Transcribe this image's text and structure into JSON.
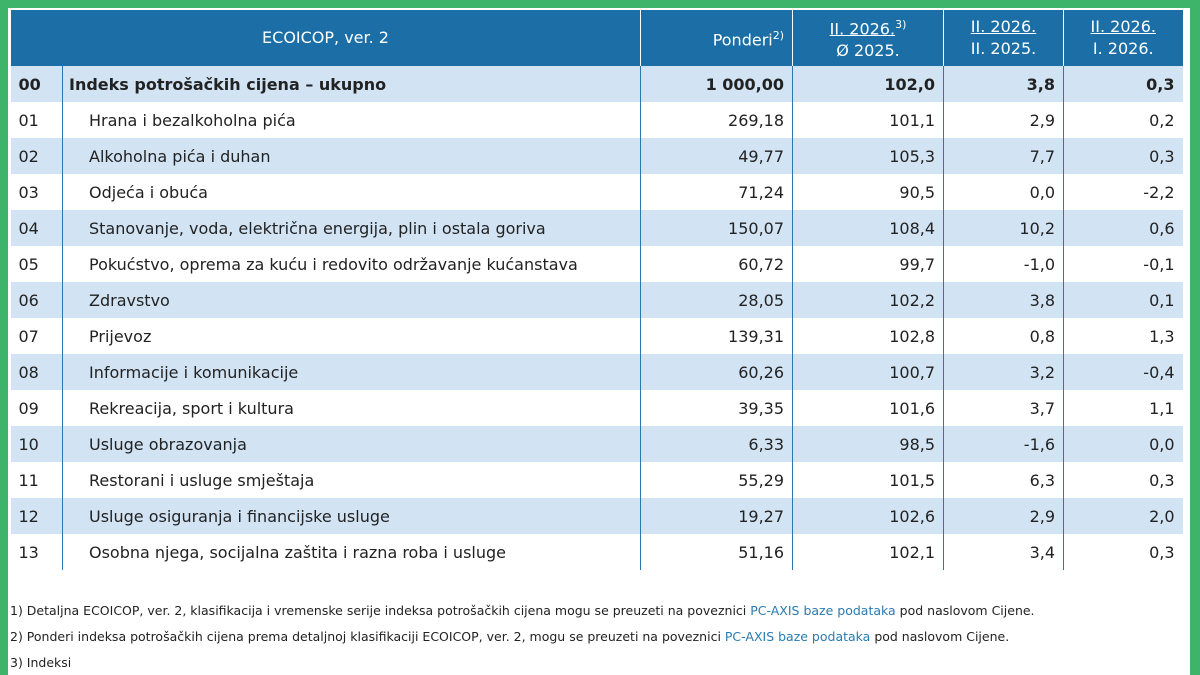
{
  "header": {
    "col0": "ECOICOP, ver. 2",
    "col1": {
      "text": "Ponderi",
      "note": "2)"
    },
    "col2": {
      "line1": "II. 2026.",
      "note": "3)",
      "line2": "Ø 2025."
    },
    "col3": {
      "line1": "II. 2026.",
      "line2": "II. 2025."
    },
    "col4": {
      "line1": "II. 2026.",
      "line2": "I. 2026."
    }
  },
  "table": {
    "rows": [
      [
        "00",
        "Indeks potrošačkih cijena – ukupno",
        "1 000,00",
        "102,0",
        "3,8",
        "0,3"
      ],
      [
        "01",
        "Hrana i bezalkoholna pića",
        "269,18",
        "101,1",
        "2,9",
        "0,2"
      ],
      [
        "02",
        "Alkoholna pića i duhan",
        "49,77",
        "105,3",
        "7,7",
        "0,3"
      ],
      [
        "03",
        "Odjeća i obuća",
        "71,24",
        "90,5",
        "0,0",
        "-2,2"
      ],
      [
        "04",
        "Stanovanje, voda, električna energija, plin i ostala goriva",
        "150,07",
        "108,4",
        "10,2",
        "0,6"
      ],
      [
        "05",
        "Pokućstvo, oprema za kuću i redovito održavanje kućanstava",
        "60,72",
        "99,7",
        "-1,0",
        "-0,1"
      ],
      [
        "06",
        "Zdravstvo",
        "28,05",
        "102,2",
        "3,8",
        "0,1"
      ],
      [
        "07",
        "Prijevoz",
        "139,31",
        "102,8",
        "0,8",
        "1,3"
      ],
      [
        "08",
        "Informacije i komunikacije",
        "60,26",
        "100,7",
        "3,2",
        "-0,4"
      ],
      [
        "09",
        "Rekreacija, sport i kultura",
        "39,35",
        "101,6",
        "3,7",
        "1,1"
      ],
      [
        "10",
        "Usluge obrazovanja",
        "6,33",
        "98,5",
        "-1,6",
        "0,0"
      ],
      [
        "11",
        "Restorani i usluge smještaja",
        "55,29",
        "101,5",
        "6,3",
        "0,3"
      ],
      [
        "12",
        "Usluge osiguranja i financijske usluge",
        "19,27",
        "102,6",
        "2,9",
        "2,0"
      ],
      [
        "13",
        "Osobna njega, socijalna zaštita i razna roba i usluge",
        "51,16",
        "102,1",
        "3,4",
        "0,3"
      ]
    ]
  },
  "footnotes": [
    {
      "before": "1) Detaljna ECOICOP, ver. 2, klasifikacija i vremenske serije indeksa potrošačkih cijena mogu se preuzeti na poveznici ",
      "link": "PC-AXIS baze podataka",
      "after": " pod naslovom Cijene."
    },
    {
      "before": "2) Ponderi indeksa potrošačkih cijena prema detaljnoj klasifikaciji ECOICOP, ver. 2, mogu se preuzeti na poveznici ",
      "link": "PC-AXIS baze podataka",
      "after": " pod naslovom Cijene."
    },
    {
      "before": "3) Indeksi"
    }
  ]
}
